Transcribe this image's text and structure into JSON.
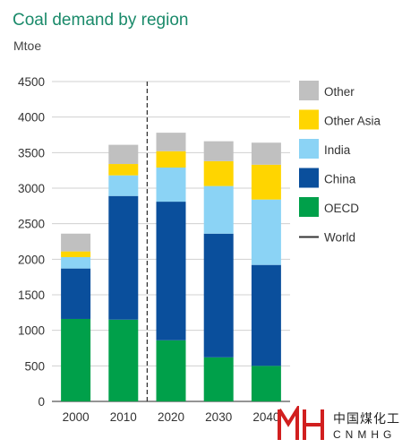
{
  "chart_data": {
    "type": "bar",
    "stacked": true,
    "title": "Coal demand by region",
    "ylabel": "Mtoe",
    "xlabel": "",
    "categories": [
      "2000",
      "2010",
      "2020",
      "2030",
      "2040"
    ],
    "ylim": [
      0,
      4500
    ],
    "yticks": [
      0,
      500,
      1000,
      1500,
      2000,
      2500,
      3000,
      3500,
      4000,
      4500
    ],
    "grid": true,
    "series": [
      {
        "name": "OECD",
        "color": "#00a04a",
        "values": [
          1160,
          1150,
          860,
          620,
          500
        ]
      },
      {
        "name": "China",
        "color": "#0a4f9c",
        "values": [
          710,
          1740,
          1950,
          1740,
          1420
        ]
      },
      {
        "name": "India",
        "color": "#8bd3f5",
        "values": [
          160,
          290,
          480,
          670,
          920
        ]
      },
      {
        "name": "Other Asia",
        "color": "#ffd500",
        "values": [
          80,
          160,
          230,
          350,
          490
        ]
      },
      {
        "name": "Other",
        "color": "#c0c0c0",
        "values": [
          250,
          270,
          260,
          280,
          310
        ]
      }
    ],
    "divider": {
      "name": "World",
      "between": [
        "2010",
        "2020"
      ],
      "style": "dashed",
      "color": "#333333"
    },
    "legend": {
      "position": "right",
      "order": [
        "Other",
        "Other Asia",
        "India",
        "China",
        "OECD",
        "World"
      ]
    }
  },
  "watermark": {
    "cn_text": "中国煤化工",
    "en_text": "CNMHG",
    "color": "#d11f1f"
  }
}
